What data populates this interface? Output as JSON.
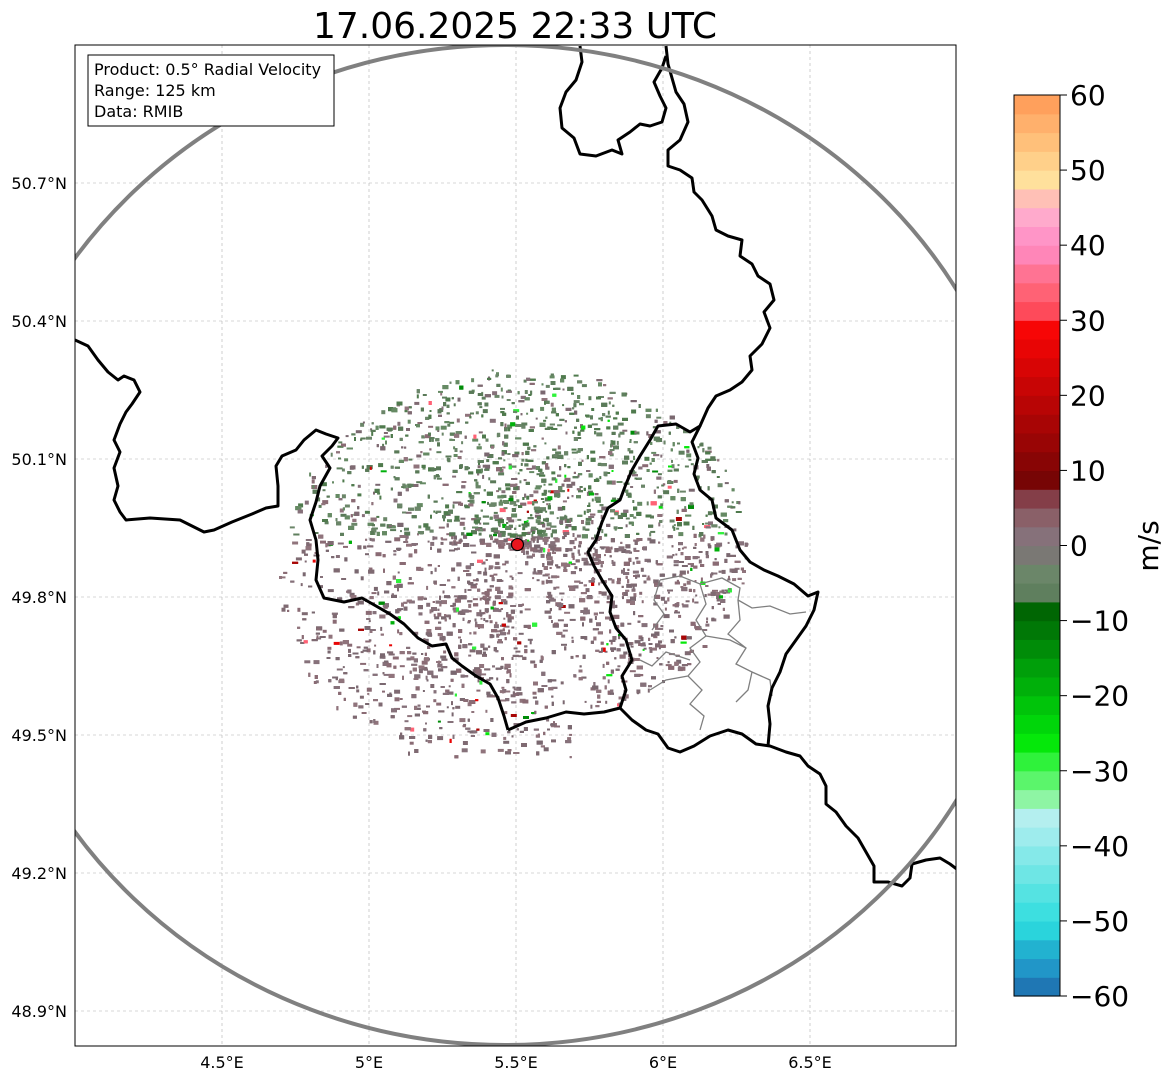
{
  "title": "17.06.2025 22:33 UTC",
  "info_box": {
    "product": "Product: 0.5° Radial Velocity",
    "range": "Range: 125 km",
    "data": "Data: RMIB"
  },
  "axes": {
    "lon_ticks": [
      {
        "value": 4.5,
        "label": "4.5°E"
      },
      {
        "value": 5.0,
        "label": "5°E"
      },
      {
        "value": 5.5,
        "label": "5.5°E"
      },
      {
        "value": 6.0,
        "label": "6°E"
      },
      {
        "value": 6.5,
        "label": "6.5°E"
      }
    ],
    "lat_ticks": [
      {
        "value": 50.7,
        "label": "50.7°N"
      },
      {
        "value": 50.4,
        "label": "50.4°N"
      },
      {
        "value": 50.1,
        "label": "50.1°N"
      },
      {
        "value": 49.8,
        "label": "49.8°N"
      },
      {
        "value": 49.5,
        "label": "49.5°N"
      },
      {
        "value": 49.2,
        "label": "49.2°N"
      },
      {
        "value": 48.9,
        "label": "48.9°N"
      }
    ],
    "lon_range": [
      4.0,
      7.0
    ],
    "lat_range": [
      48.8,
      51.0
    ],
    "grid": true
  },
  "radar_site": {
    "lon": 5.505,
    "lat": 49.914,
    "color": "#e8161e"
  },
  "colorbar": {
    "units": "m/s",
    "min": -60,
    "max": 60,
    "ticks": [
      {
        "value": 60,
        "label": "60"
      },
      {
        "value": 50,
        "label": "50"
      },
      {
        "value": 40,
        "label": "40"
      },
      {
        "value": 30,
        "label": "30"
      },
      {
        "value": 20,
        "label": "20"
      },
      {
        "value": 10,
        "label": "10"
      },
      {
        "value": 0,
        "label": "0"
      },
      {
        "value": -10,
        "label": "−10"
      },
      {
        "value": -20,
        "label": "−20"
      },
      {
        "value": -30,
        "label": "−30"
      },
      {
        "value": -40,
        "label": "−40"
      },
      {
        "value": -50,
        "label": "−50"
      },
      {
        "value": -60,
        "label": "−60"
      }
    ],
    "colors": [
      "#1f77b4",
      "#2196c8",
      "#22b2d0",
      "#2ad4dc",
      "#3ddfe0",
      "#55e3e2",
      "#6ee6e5",
      "#85e9e9",
      "#9eeced",
      "#b4efef",
      "#8ef5a4",
      "#5bf56b",
      "#2ff23b",
      "#05e80a",
      "#00d60a",
      "#00c40a",
      "#00b00a",
      "#009f0a",
      "#008c08",
      "#007806",
      "#006603",
      "#5f7f5e",
      "#6b8669",
      "#7a7874",
      "#86717a",
      "#8a6068",
      "#843e48",
      "#770505",
      "#880505",
      "#990505",
      "#a80505",
      "#b80505",
      "#c80505",
      "#d80505",
      "#e80505",
      "#f70606",
      "#fe4a5a",
      "#ff6275",
      "#ff7393",
      "#ff86b8",
      "#ff95c7",
      "#ffaacc",
      "#ffc0b6",
      "#ffe09c",
      "#ffd08a",
      "#ffc07a",
      "#ffb06c",
      "#ffa05c"
    ]
  }
}
